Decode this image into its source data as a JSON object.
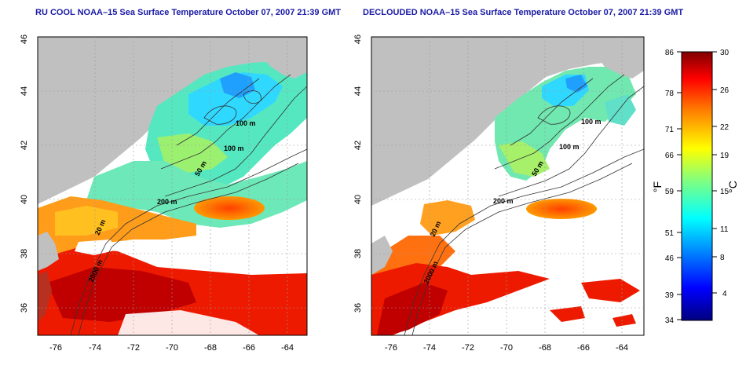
{
  "left_panel": {
    "title": "RU COOL NOAA–15 Sea Surface Temperature October 07, 2007 21:39 GMT"
  },
  "right_panel": {
    "title": "DECLOUDED NOAA–15 Sea Surface Temperature October 07, 2007 21:39 GMT"
  },
  "axes": {
    "x_ticks": [
      "-76",
      "-74",
      "-72",
      "-70",
      "-68",
      "-66",
      "-64"
    ],
    "y_ticks": [
      "46",
      "44",
      "42",
      "40",
      "38",
      "36"
    ]
  },
  "contour_labels": {
    "c100a": "100 m",
    "c100b": "100 m",
    "c50": "50 m",
    "c200": "200 m",
    "c20": "20 m",
    "c2000": "2000 m"
  },
  "colorbar": {
    "fahrenheit_label": "°F",
    "celsius_label": "°C",
    "fahrenheit_ticks": [
      "86",
      "78",
      "71",
      "66",
      "59",
      "51",
      "46",
      "39",
      "34"
    ],
    "celsius_ticks": [
      "30",
      "26",
      "22",
      "19",
      "15",
      "11",
      "8",
      "4"
    ],
    "colors": [
      "#00007f",
      "#0000ff",
      "#0080ff",
      "#00ffff",
      "#80ff80",
      "#ffff00",
      "#ff8000",
      "#ff0000",
      "#7f0000"
    ]
  },
  "colors": {
    "land": "#c0c0c0",
    "cloud": "#ffffff",
    "contour": "#333333"
  }
}
